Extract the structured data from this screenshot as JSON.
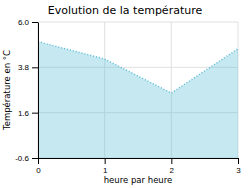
{
  "chart_data": {
    "type": "area",
    "title": "Evolution de la température",
    "xlabel": "heure par heure",
    "ylabel": "Température en °C",
    "x": [
      0,
      1,
      2,
      3
    ],
    "values": [
      5.05,
      4.2,
      2.55,
      4.7
    ],
    "color": "#5bbcd6",
    "line_style": "dotted",
    "xlim": [
      0,
      3
    ],
    "ylim": [
      -0.6,
      6.0
    ],
    "xticks": [
      0,
      1,
      2,
      3
    ],
    "yticks": [
      -0.6,
      1.6,
      3.8,
      {
        "value": 6.0,
        "label": "6.0"
      }
    ],
    "grid": true
  }
}
